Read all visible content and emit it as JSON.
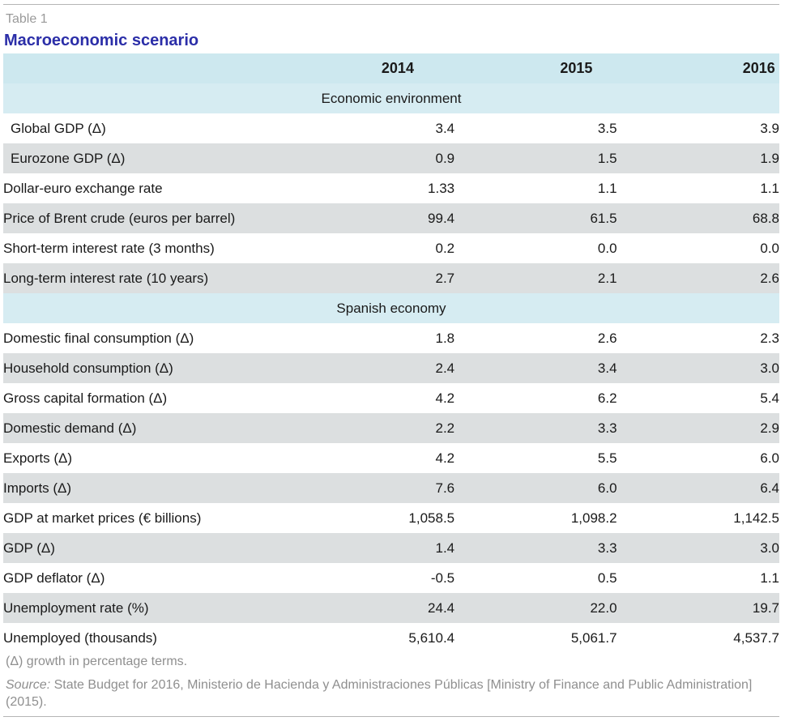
{
  "table_label": "Table 1",
  "title": "Macroeconomic scenario",
  "years": [
    "2014",
    "2015",
    "2016"
  ],
  "sections": [
    {
      "heading": "Economic environment",
      "rows": [
        {
          "label": "Global GDP (Δ)",
          "values": [
            "3.4",
            "3.5",
            "3.9"
          ]
        },
        {
          "label": "Eurozone GDP (Δ)",
          "values": [
            "0.9",
            "1.5",
            "1.9"
          ]
        },
        {
          "label": "Dollar-euro exchange rate",
          "values": [
            "1.33",
            "1.1",
            "1.1"
          ]
        },
        {
          "label": "Price of Brent crude (euros per barrel)",
          "values": [
            "99.4",
            "61.5",
            "68.8"
          ]
        },
        {
          "label": "Short-term interest rate (3 months)",
          "values": [
            "0.2",
            "0.0",
            "0.0"
          ]
        },
        {
          "label": "Long-term interest rate (10 years)",
          "values": [
            "2.7",
            "2.1",
            "2.6"
          ]
        }
      ]
    },
    {
      "heading": "Spanish economy",
      "rows": [
        {
          "label": "Domestic final consumption (Δ)",
          "values": [
            "1.8",
            "2.6",
            "2.3"
          ]
        },
        {
          "label": "Household consumption (Δ)",
          "values": [
            "2.4",
            "3.4",
            "3.0"
          ]
        },
        {
          "label": "Gross capital formation (Δ)",
          "values": [
            "4.2",
            "6.2",
            "5.4"
          ]
        },
        {
          "label": "Domestic demand (Δ)",
          "values": [
            "2.2",
            "3.3",
            "2.9"
          ]
        },
        {
          "label": "Exports (Δ)",
          "values": [
            "4.2",
            "5.5",
            "6.0"
          ]
        },
        {
          "label": "Imports (Δ)",
          "values": [
            "7.6",
            "6.0",
            "6.4"
          ]
        },
        {
          "label": "GDP at market prices (€ billions)",
          "values": [
            "1,058.5",
            "1,098.2",
            "1,142.5"
          ]
        },
        {
          "label": "GDP (Δ)",
          "values": [
            "1.4",
            "3.3",
            "3.0"
          ]
        },
        {
          "label": "GDP deflator (Δ)",
          "values": [
            "-0.5",
            "0.5",
            "1.1"
          ]
        },
        {
          "label": "Unemployment rate (%)",
          "values": [
            "24.4",
            "22.0",
            "19.7"
          ]
        },
        {
          "label": "Unemployed (thousands)",
          "values": [
            "5,610.4",
            "5,061.7",
            "4,537.7"
          ]
        }
      ]
    }
  ],
  "footnote": "(Δ) growth in percentage terms.",
  "source_label": "Source:",
  "source_text": " State Budget for 2016, Ministerio de Hacienda y Administraciones Públicas [Ministry of Finance and Public Administration] (2015).",
  "colors": {
    "title": "#2b2ea8",
    "header_band": "#cde8ef",
    "section_band": "#d6ecf2",
    "row_shade": "#dcdfe0",
    "muted_text": "#8f8f8f"
  }
}
